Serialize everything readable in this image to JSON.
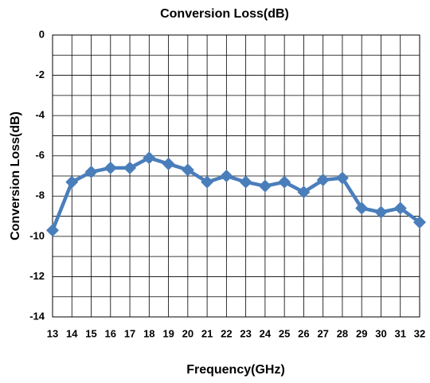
{
  "chart_data": {
    "type": "line",
    "title": "Conversion Loss(dB)",
    "xlabel": "Frequency(GHz)",
    "ylabel": "Conversion Loss(dB)",
    "x": [
      13,
      14,
      15,
      16,
      17,
      18,
      19,
      20,
      21,
      22,
      23,
      24,
      25,
      26,
      27,
      28,
      29,
      30,
      31,
      32
    ],
    "series": [
      {
        "name": "Conversion Loss(dB)",
        "color": "#4a7ebb",
        "values": [
          -9.7,
          -7.3,
          -6.8,
          -6.6,
          -6.6,
          -6.1,
          -6.4,
          -6.7,
          -7.3,
          -7.0,
          -7.3,
          -7.5,
          -7.3,
          -7.8,
          -7.2,
          -7.1,
          -8.6,
          -8.8,
          -8.6,
          -9.3
        ]
      }
    ],
    "xlim": [
      13,
      32
    ],
    "xticks": [
      13,
      14,
      15,
      16,
      17,
      18,
      19,
      20,
      21,
      22,
      23,
      24,
      25,
      26,
      27,
      28,
      29,
      30,
      31,
      32
    ],
    "ylim": [
      -14,
      0
    ],
    "yticks": [
      -14,
      -12,
      -10,
      -8,
      -6,
      -4,
      -2,
      0
    ],
    "yminor_ticks": [
      -13,
      -11,
      -9,
      -7,
      -5,
      -3,
      -1
    ],
    "grid": true,
    "legend": false
  }
}
